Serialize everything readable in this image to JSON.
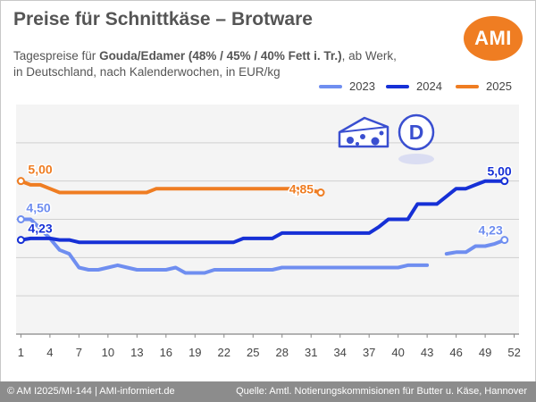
{
  "header": {
    "title": "Preise für Schnittkäse – Brotware",
    "subtitle_prefix": "Tagespreise für ",
    "subtitle_bold": "Gouda/Edamer (48% / 45% / 40% Fett i. Tr.)",
    "subtitle_suffix": ", ab Werk,",
    "subtitle_line2": "in Deutschland, nach Kalenderwochen, in EUR/kg",
    "logo_text": "AMI"
  },
  "footer": {
    "left": "© AM I2025/MI-144 | AMI-informiert.de",
    "right": "Quelle: Amtl. Notierungskommisionen für Butter u. Käse, Hannover"
  },
  "icons": [
    "cheese-icon",
    "germany-d-icon"
  ],
  "icon_text": {
    "country_letter": "D"
  },
  "colors": {
    "2023": "#6f8ef0",
    "2024": "#1630d6",
    "2025": "#ef7d22",
    "grid": "#d0d0d0",
    "axis": "#888888",
    "plot_bg": "#f4f4f4"
  },
  "chart_data": {
    "type": "line",
    "title": "",
    "xlabel": "",
    "ylabel": "",
    "xlim": [
      0.5,
      52.5
    ],
    "ylim": [
      3.0,
      6.0
    ],
    "x_ticks": [
      1,
      4,
      7,
      10,
      13,
      16,
      19,
      22,
      25,
      28,
      31,
      34,
      37,
      40,
      43,
      46,
      49,
      52
    ],
    "y_gridlines": [
      3.5,
      4.0,
      4.5,
      5.0,
      5.5
    ],
    "grid": true,
    "legend_position": "top-right",
    "series": [
      {
        "name": "2023",
        "points": [
          [
            1,
            4.5
          ],
          [
            2,
            4.5
          ],
          [
            3,
            4.38
          ],
          [
            4,
            4.25
          ],
          [
            5,
            4.1
          ],
          [
            6,
            4.05
          ],
          [
            7,
            3.87
          ],
          [
            8,
            3.84
          ],
          [
            9,
            3.84
          ],
          [
            10,
            3.87
          ],
          [
            11,
            3.9
          ],
          [
            12,
            3.87
          ],
          [
            13,
            3.84
          ],
          [
            14,
            3.84
          ],
          [
            15,
            3.84
          ],
          [
            16,
            3.84
          ],
          [
            17,
            3.87
          ],
          [
            18,
            3.8
          ],
          [
            19,
            3.8
          ],
          [
            20,
            3.8
          ],
          [
            21,
            3.84
          ],
          [
            22,
            3.84
          ],
          [
            23,
            3.84
          ],
          [
            24,
            3.84
          ],
          [
            25,
            3.84
          ],
          [
            26,
            3.84
          ],
          [
            27,
            3.84
          ],
          [
            28,
            3.87
          ],
          [
            29,
            3.87
          ],
          [
            30,
            3.87
          ],
          [
            31,
            3.87
          ],
          [
            32,
            3.87
          ],
          [
            33,
            3.87
          ],
          [
            34,
            3.87
          ],
          [
            35,
            3.87
          ],
          [
            36,
            3.87
          ],
          [
            37,
            3.87
          ],
          [
            38,
            3.87
          ],
          [
            39,
            3.87
          ],
          [
            40,
            3.87
          ],
          [
            41,
            3.9
          ],
          [
            42,
            3.9
          ],
          [
            43,
            3.9
          ],
          null,
          [
            45,
            4.05
          ],
          [
            46,
            4.07
          ],
          [
            47,
            4.07
          ],
          [
            48,
            4.15
          ],
          [
            49,
            4.15
          ],
          [
            50,
            4.18
          ],
          [
            51,
            4.23
          ]
        ],
        "labels": [
          {
            "x": 1,
            "text": "4,50"
          },
          {
            "x": 51,
            "text": "4,23"
          }
        ]
      },
      {
        "name": "2024",
        "points": [
          [
            1,
            4.23
          ],
          [
            2,
            4.25
          ],
          [
            3,
            4.25
          ],
          [
            4,
            4.25
          ],
          [
            5,
            4.23
          ],
          [
            6,
            4.23
          ],
          [
            7,
            4.2
          ],
          [
            8,
            4.2
          ],
          [
            9,
            4.2
          ],
          [
            10,
            4.2
          ],
          [
            11,
            4.2
          ],
          [
            12,
            4.2
          ],
          [
            13,
            4.2
          ],
          [
            14,
            4.2
          ],
          [
            15,
            4.2
          ],
          [
            16,
            4.2
          ],
          [
            17,
            4.2
          ],
          [
            18,
            4.2
          ],
          [
            19,
            4.2
          ],
          [
            20,
            4.2
          ],
          [
            21,
            4.2
          ],
          [
            22,
            4.2
          ],
          [
            23,
            4.2
          ],
          [
            24,
            4.25
          ],
          [
            25,
            4.25
          ],
          [
            26,
            4.25
          ],
          [
            27,
            4.25
          ],
          [
            28,
            4.32
          ],
          [
            29,
            4.32
          ],
          [
            30,
            4.32
          ],
          [
            31,
            4.32
          ],
          [
            32,
            4.32
          ],
          [
            33,
            4.32
          ],
          [
            34,
            4.32
          ],
          [
            35,
            4.32
          ],
          [
            36,
            4.32
          ],
          [
            37,
            4.32
          ],
          [
            38,
            4.4
          ],
          [
            39,
            4.5
          ],
          [
            40,
            4.5
          ],
          [
            41,
            4.5
          ],
          [
            42,
            4.7
          ],
          [
            43,
            4.7
          ],
          [
            44,
            4.7
          ],
          [
            45,
            4.8
          ],
          [
            46,
            4.9
          ],
          [
            47,
            4.9
          ],
          [
            48,
            4.95
          ],
          [
            49,
            5.0
          ],
          [
            50,
            5.0
          ],
          [
            51,
            5.0
          ]
        ],
        "labels": [
          {
            "x": 1,
            "text": "4,23"
          },
          {
            "x": 49,
            "text": "5,00"
          }
        ]
      },
      {
        "name": "2025",
        "points": [
          [
            1,
            5.0
          ],
          [
            2,
            4.95
          ],
          [
            3,
            4.95
          ],
          [
            4,
            4.9
          ],
          [
            5,
            4.85
          ],
          [
            6,
            4.85
          ],
          [
            7,
            4.85
          ],
          [
            8,
            4.85
          ],
          [
            9,
            4.85
          ],
          [
            10,
            4.85
          ],
          [
            11,
            4.85
          ],
          [
            12,
            4.85
          ],
          [
            13,
            4.85
          ],
          [
            14,
            4.85
          ],
          [
            15,
            4.9
          ],
          [
            16,
            4.9
          ],
          [
            17,
            4.9
          ],
          [
            18,
            4.9
          ],
          [
            19,
            4.9
          ],
          [
            20,
            4.9
          ],
          [
            21,
            4.9
          ],
          [
            22,
            4.9
          ],
          [
            23,
            4.9
          ],
          [
            24,
            4.9
          ],
          [
            25,
            4.9
          ],
          [
            26,
            4.9
          ],
          [
            27,
            4.9
          ],
          [
            28,
            4.9
          ],
          [
            29,
            4.9
          ],
          [
            30,
            4.9
          ],
          [
            31,
            4.88
          ],
          [
            32,
            4.85
          ]
        ],
        "labels": [
          {
            "x": 1,
            "text": "5,00"
          },
          {
            "x": 32,
            "text": "4,85"
          }
        ]
      }
    ]
  }
}
